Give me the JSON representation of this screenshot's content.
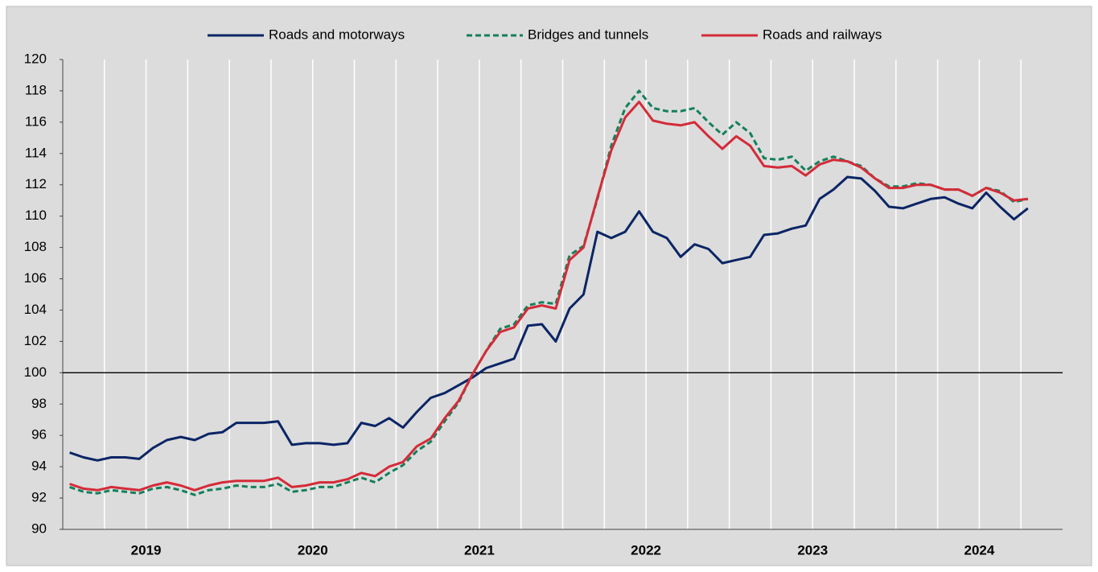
{
  "chart_data": {
    "type": "line",
    "categories": [
      null,
      null,
      null,
      null,
      null,
      "2019",
      null,
      null,
      null,
      null,
      null,
      null,
      null,
      null,
      null,
      null,
      null,
      "2020",
      null,
      null,
      null,
      null,
      null,
      null,
      null,
      null,
      null,
      null,
      null,
      "2021",
      null,
      null,
      null,
      null,
      null,
      null,
      null,
      null,
      null,
      null,
      null,
      "2022",
      null,
      null,
      null,
      null,
      null,
      null,
      null,
      null,
      null,
      null,
      null,
      "2023",
      null,
      null,
      null,
      null,
      null,
      null,
      null,
      null,
      null,
      null,
      null,
      "2024",
      null,
      null,
      null,
      null
    ],
    "series": [
      {
        "name": "Roads and motorways",
        "color": "#0b2565",
        "dash": false,
        "values": [
          94.9,
          94.6,
          94.4,
          94.6,
          94.6,
          94.5,
          95.2,
          95.7,
          95.9,
          95.7,
          96.1,
          96.2,
          96.8,
          96.8,
          96.8,
          96.9,
          95.4,
          95.5,
          95.5,
          95.4,
          95.5,
          96.8,
          96.6,
          97.1,
          96.5,
          97.5,
          98.4,
          98.7,
          99.2,
          99.7,
          100.3,
          100.6,
          100.9,
          103.0,
          103.1,
          102.0,
          104.1,
          105.0,
          109.0,
          108.6,
          109.0,
          110.3,
          109.0,
          108.6,
          107.4,
          108.2,
          107.9,
          107.0,
          107.2,
          107.4,
          108.8,
          108.9,
          109.2,
          109.4,
          111.1,
          111.7,
          112.5,
          112.4,
          111.6,
          110.6,
          110.5,
          110.8,
          111.1,
          111.2,
          110.8,
          110.5,
          111.5,
          110.6,
          109.8,
          110.5
        ]
      },
      {
        "name": "Bridges and tunnels",
        "color": "#15805a",
        "dash": true,
        "values": [
          92.7,
          92.4,
          92.3,
          92.5,
          92.4,
          92.3,
          92.6,
          92.7,
          92.5,
          92.2,
          92.5,
          92.6,
          92.8,
          92.7,
          92.7,
          92.9,
          92.4,
          92.5,
          92.7,
          92.7,
          93.0,
          93.3,
          93.0,
          93.6,
          94.1,
          95.0,
          95.6,
          96.9,
          98.1,
          99.9,
          101.4,
          102.8,
          103.1,
          104.3,
          104.5,
          104.4,
          107.5,
          108.1,
          111.1,
          114.5,
          116.9,
          118.0,
          116.9,
          116.7,
          116.7,
          116.9,
          116.0,
          115.2,
          116.0,
          115.3,
          113.7,
          113.6,
          113.8,
          112.9,
          113.5,
          113.8,
          113.5,
          113.2,
          112.4,
          111.9,
          111.9,
          112.1,
          112.0,
          111.7,
          111.7,
          111.3,
          111.8,
          111.6,
          110.9,
          111.1
        ]
      },
      {
        "name": "Roads and railways",
        "color": "#d42b38",
        "dash": false,
        "values": [
          92.9,
          92.6,
          92.5,
          92.7,
          92.6,
          92.5,
          92.8,
          93.0,
          92.8,
          92.5,
          92.8,
          93.0,
          93.1,
          93.1,
          93.1,
          93.3,
          92.7,
          92.8,
          93.0,
          93.0,
          93.2,
          93.6,
          93.4,
          94.0,
          94.3,
          95.3,
          95.8,
          97.1,
          98.2,
          99.9,
          101.4,
          102.6,
          102.9,
          104.1,
          104.3,
          104.1,
          107.2,
          108.0,
          111.2,
          114.2,
          116.3,
          117.3,
          116.1,
          115.9,
          115.8,
          116.0,
          115.1,
          114.3,
          115.1,
          114.5,
          113.2,
          113.1,
          113.2,
          112.6,
          113.3,
          113.6,
          113.5,
          113.1,
          112.4,
          111.8,
          111.8,
          112.0,
          112.0,
          111.7,
          111.7,
          111.3,
          111.8,
          111.5,
          111.0,
          111.1
        ]
      }
    ],
    "ylim": [
      90,
      120
    ],
    "yticks": [
      90,
      92,
      94,
      96,
      98,
      100,
      102,
      104,
      106,
      108,
      110,
      112,
      114,
      116,
      118,
      120
    ],
    "reference_line": 100,
    "legend": "top"
  }
}
